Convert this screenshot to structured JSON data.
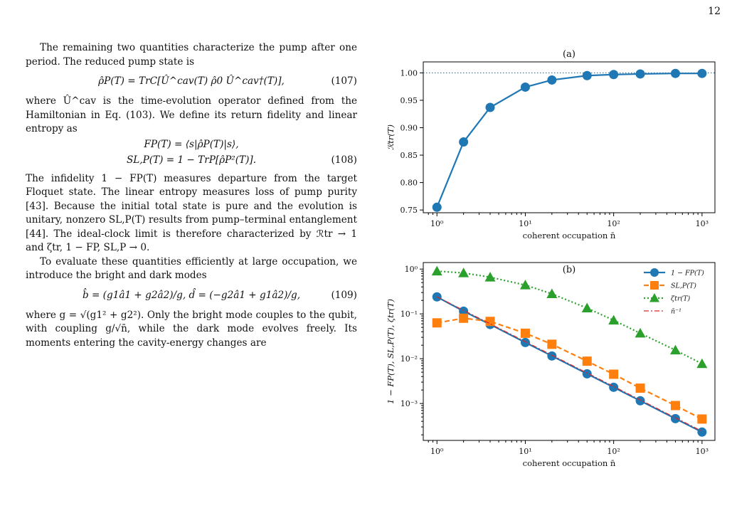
{
  "page_number": "12",
  "text": {
    "p1": "The remaining two quantities characterize the pump after one period. The reduced pump state is",
    "eq107": "ρ̂P(T) = TrC[Û^cav(T) ρ̂0 Û^cav†(T)],",
    "eq107_num": "(107)",
    "p2": "where Û^cav is the time-evolution operator defined from the Hamiltonian in Eq. (103). We define its return fidelity and linear entropy as",
    "eq108_l1": "FP(T) = ⟨s|ρ̂P(T)|s⟩,",
    "eq108_l2": "SL,P(T) = 1 − TrP[ρ̂P²(T)].",
    "eq108_num": "(108)",
    "p3": "The infidelity 1 − FP(T) measures departure from the target Floquet state. The linear entropy measures loss of pump purity [43]. Because the initial total state is pure and the evolution is unitary, nonzero SL,P(T) results from pump–terminal entanglement [44]. The ideal-clock limit is therefore characterized by ℛtr → 1 and ζtr, 1 − FP, SL,P → 0.",
    "p4": "To evaluate these quantities efficiently at large occupation, we introduce the bright and dark modes",
    "eq109": "b̂ = (g1â1 + g2â2)/g,      d̂ = (−g2â1 + g1â2)/g,",
    "eq109_num": "(109)",
    "p5": "where g = √(g1² + g2²). Only the bright mode couples to the qubit, with coupling g/√n̄, while the dark mode evolves freely. Its moments entering the cavity-energy changes are"
  },
  "chart_data": [
    {
      "type": "line",
      "title": "(a)",
      "xlabel": "coherent occupation n̄",
      "ylabel": "ℛtr(T)",
      "xscale": "log",
      "xlim": [
        0.7,
        1400
      ],
      "ylim": [
        0.745,
        1.02
      ],
      "xticks": [
        "10⁰",
        "10¹",
        "10²",
        "10³"
      ],
      "yticks": [
        "0.75",
        "0.80",
        "0.85",
        "0.90",
        "0.95",
        "1.00"
      ],
      "reference_line": {
        "y": 1.0,
        "style": "dotted",
        "color": "#1f77b4"
      },
      "series": [
        {
          "color": "#1f77b4",
          "marker": "circle",
          "x": [
            1,
            2,
            4,
            10,
            20,
            50,
            100,
            200,
            500,
            1000
          ],
          "y": [
            0.755,
            0.874,
            0.937,
            0.974,
            0.987,
            0.995,
            0.997,
            0.998,
            0.999,
            0.999
          ]
        }
      ]
    },
    {
      "type": "line",
      "title": "(b)",
      "xlabel": "coherent occupation n̄",
      "ylabel": "1 − FP(T), SL,P(T), ζtr(T)",
      "xscale": "log",
      "yscale": "log",
      "xlim": [
        0.7,
        1400
      ],
      "ylim": [
        0.00015,
        1.4
      ],
      "xticks": [
        "10⁰",
        "10¹",
        "10²",
        "10³"
      ],
      "yticks": [
        "10⁰",
        "10⁻¹",
        "10⁻²",
        "10⁻³"
      ],
      "legend_position": "top-right",
      "series": [
        {
          "name": "1 − FP(T)",
          "color": "#1f77b4",
          "marker": "circle",
          "linestyle": "solid",
          "x": [
            1,
            2,
            4,
            10,
            20,
            50,
            100,
            200,
            500,
            1000
          ],
          "y": [
            0.24,
            0.115,
            0.058,
            0.023,
            0.0115,
            0.0046,
            0.0023,
            0.00115,
            0.00046,
            0.00023
          ]
        },
        {
          "name": "SL,P(T)",
          "color": "#ff7f0e",
          "marker": "square",
          "linestyle": "dashed",
          "x": [
            1,
            2,
            4,
            10,
            20,
            50,
            100,
            200,
            500,
            1000
          ],
          "y": [
            0.063,
            0.08,
            0.068,
            0.037,
            0.021,
            0.0088,
            0.0045,
            0.0022,
            0.0009,
            0.00045
          ]
        },
        {
          "name": "ζtr(T)",
          "color": "#2ca02c",
          "marker": "triangle",
          "linestyle": "dotted",
          "x": [
            1,
            2,
            4,
            10,
            20,
            50,
            100,
            200,
            500,
            1000
          ],
          "y": [
            0.9,
            0.82,
            0.66,
            0.44,
            0.28,
            0.135,
            0.072,
            0.037,
            0.0155,
            0.0077
          ]
        },
        {
          "name": "n̄⁻¹",
          "color": "#d62728",
          "marker": "none",
          "linestyle": "dashdot",
          "x": [
            1,
            1000
          ],
          "y": [
            0.24,
            0.00024
          ]
        }
      ]
    }
  ]
}
